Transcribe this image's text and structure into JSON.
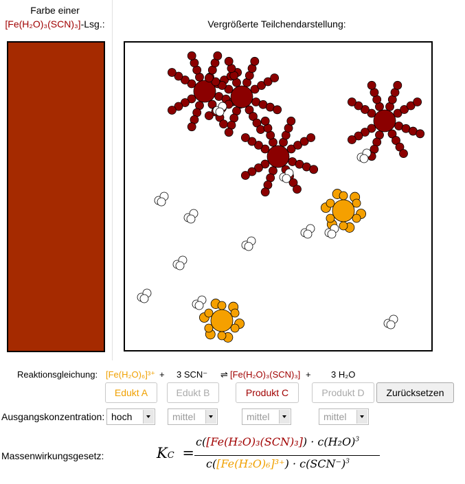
{
  "color_panel": {
    "label_line1": "Farbe einer",
    "label_compound": "[Fe(H₂O)₃(SCN)₃]",
    "label_suffix": "-Lsg.:",
    "swatch_color": "#a52a00"
  },
  "particle_panel": {
    "title": "Vergrößerte Teilchendarstellung:"
  },
  "colors": {
    "product_c": "#8b0000",
    "educt_a": "#f5a000",
    "water": "#ffffff"
  },
  "reaction": {
    "label": "Reaktionsgleichung:",
    "educt_a": "[Fe(H₂O)₆]³⁺",
    "plus1": "+",
    "educt_b": "3 SCN⁻",
    "arrow": "⇌",
    "product_c": "[Fe(H₂O)₃(SCN)₃]",
    "plus2": "+",
    "product_d": "3 H₂O"
  },
  "buttons": {
    "edukt_a": "Edukt A",
    "edukt_b": "Edukt B",
    "produkt_c": "Produkt C",
    "produkt_d": "Produkt D",
    "reset": "Zurücksetzen"
  },
  "initial_concentration": {
    "label": "Ausgangskonzentration:",
    "a": "hoch",
    "b": "mittel",
    "c": "mittel",
    "d": "mittel"
  },
  "mass_action": {
    "label": "Massenwirkungsgesetz:",
    "kc": "K",
    "kc_sub": "C",
    "equals": "=",
    "num_c_open": "c(",
    "num_product": "[Fe(H₂O)₃(SCN)₃]",
    "num_mid": ") · c(H₂O)",
    "num_exp": "3",
    "den_c_open": "c(",
    "den_educt": "[Fe(H₂O)₆]³⁺",
    "den_mid": ") · c(SCN⁻)",
    "den_exp": "3"
  }
}
